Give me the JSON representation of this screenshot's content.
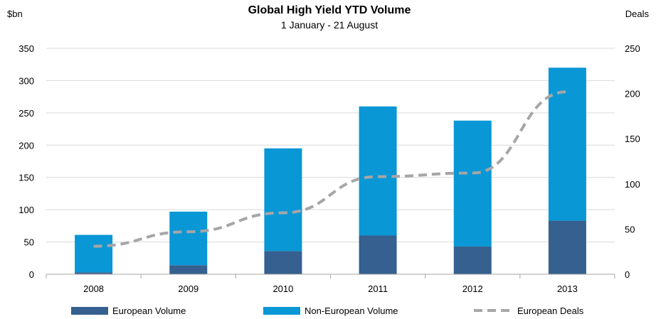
{
  "chart_data": {
    "type": "bar",
    "stacked": true,
    "title": "Global High Yield YTD Volume",
    "subtitle": "1 January - 21 August",
    "ylabel": "$bn",
    "y2label": "Deals",
    "ylim": [
      0,
      350
    ],
    "y2lim": [
      0,
      250
    ],
    "yticks": [
      "0",
      "50",
      "100",
      "150",
      "200",
      "250",
      "300",
      "350"
    ],
    "y2ticks": [
      "0",
      "50",
      "100",
      "150",
      "200",
      "250"
    ],
    "categories": [
      "2008",
      "2009",
      "2010",
      "2011",
      "2012",
      "2013"
    ],
    "series": [
      {
        "name": "European Volume",
        "type": "bar",
        "axis": "left",
        "color": "#35608f",
        "values": [
          3,
          14,
          36,
          60,
          43,
          83
        ]
      },
      {
        "name": "Non-European Volume",
        "type": "bar",
        "axis": "left",
        "color": "#0997d6",
        "values": [
          58,
          83,
          159,
          200,
          195,
          237
        ]
      },
      {
        "name": "European Deals",
        "type": "line",
        "axis": "right",
        "style": "dashed",
        "color": "#a6a6a6",
        "values": [
          31,
          47,
          68,
          108,
          112,
          202
        ]
      }
    ],
    "legend_position": "bottom",
    "gridlines": true
  }
}
